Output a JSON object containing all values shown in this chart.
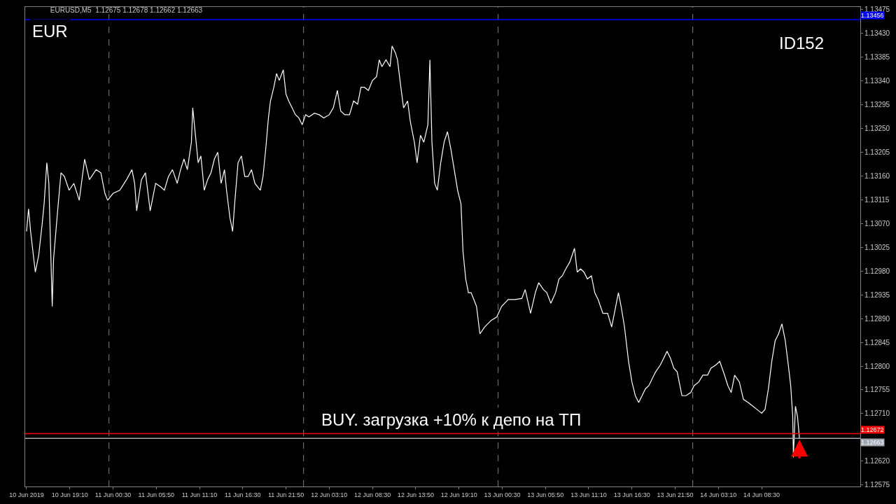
{
  "chart_data": {
    "type": "line",
    "title": "EURUSD,M5  1.12675 1.12678 1.12662 1.12663",
    "annotations": [
      "EUR",
      "ID152",
      "BUY. загрузка +10% к депо на ТП"
    ],
    "xlim": [
      "2019-06-10T13:40",
      "2019-06-14T20:40"
    ],
    "xticks": [
      {
        "value": "2019-06-10T13:50",
        "label": "10 Jun 2019"
      },
      {
        "value": "2019-06-10T19:10",
        "label": "10 Jun 19:10"
      },
      {
        "value": "2019-06-11T00:30",
        "label": "11 Jun 00:30"
      },
      {
        "value": "2019-06-11T05:50",
        "label": "11 Jun 05:50"
      },
      {
        "value": "2019-06-11T11:10",
        "label": "11 Jun 11:10"
      },
      {
        "value": "2019-06-11T16:30",
        "label": "11 Jun 16:30"
      },
      {
        "value": "2019-06-11T21:50",
        "label": "11 Jun 21:50"
      },
      {
        "value": "2019-06-12T03:10",
        "label": "12 Jun 03:10"
      },
      {
        "value": "2019-06-12T08:30",
        "label": "12 Jun 08:30"
      },
      {
        "value": "2019-06-12T13:50",
        "label": "12 Jun 13:50"
      },
      {
        "value": "2019-06-12T19:10",
        "label": "12 Jun 19:10"
      },
      {
        "value": "2019-06-13T00:30",
        "label": "13 Jun 00:30"
      },
      {
        "value": "2019-06-13T05:50",
        "label": "13 Jun 05:50"
      },
      {
        "value": "2019-06-13T11:10",
        "label": "13 Jun 11:10"
      },
      {
        "value": "2019-06-13T16:30",
        "label": "13 Jun 16:30"
      },
      {
        "value": "2019-06-13T21:50",
        "label": "13 Jun 21:50"
      },
      {
        "value": "2019-06-14T03:10",
        "label": "14 Jun 03:10"
      },
      {
        "value": "2019-06-14T08:30",
        "label": "14 Jun 08:30"
      }
    ],
    "ylim": [
      1.12572,
      1.1348
    ],
    "yticks": [
      1.13475,
      {
        "value": 1.1343,
        "label": "1.13430"
      },
      1.13385,
      {
        "value": 1.1334,
        "label": "1.13340"
      },
      1.13295,
      {
        "value": 1.1325,
        "label": "1.13250"
      },
      1.13205,
      {
        "value": 1.1316,
        "label": "1.13160"
      },
      1.13115,
      {
        "value": 1.1307,
        "label": "1.13070"
      },
      1.13025,
      {
        "value": 1.1298,
        "label": "1.12980"
      },
      1.12935,
      {
        "value": 1.1289,
        "label": "1.12890"
      },
      1.12845,
      {
        "value": 1.128,
        "label": "1.12800"
      },
      1.12755,
      {
        "value": 1.1271,
        "label": "1.12710"
      },
      {
        "value": 1.1262,
        "label": "1.12620"
      },
      1.12575
    ],
    "marker": "none",
    "line_style": "solid",
    "ref_lines": [
      {
        "axis": "y",
        "value": 1.12672,
        "label": "1.12672",
        "color": "#ff0000",
        "line_style": "solid"
      },
      {
        "axis": "y",
        "value": 1.12663,
        "label": "1.12663",
        "color": "#a0a8b0",
        "line_style": "solid"
      },
      {
        "axis": "y",
        "value": 1.13456,
        "label": "1.13456",
        "color": "#0000ff",
        "line_style": "solid"
      },
      {
        "axis": "x",
        "value": "2019-06-11T00:00",
        "color": "#808080",
        "line_style": "dashed"
      },
      {
        "axis": "x",
        "value": "2019-06-12T00:00",
        "color": "#808080",
        "line_style": "dashed"
      },
      {
        "axis": "x",
        "value": "2019-06-13T00:00",
        "color": "#808080",
        "line_style": "dashed"
      },
      {
        "axis": "x",
        "value": "2019-06-14T00:00",
        "color": "#808080",
        "line_style": "dashed"
      }
    ],
    "series": [
      {
        "color": "#ffffff",
        "x": [
          "2019-06-10T13:50",
          "2019-06-10T14:05",
          "2019-06-10T14:20",
          "2019-06-10T14:55",
          "2019-06-10T15:20",
          "2019-06-10T15:45",
          "2019-06-10T16:00",
          "2019-06-10T16:20",
          "2019-06-10T16:35",
          "2019-06-10T17:00",
          "2019-06-10T17:10",
          "2019-06-10T17:40",
          "2019-06-10T18:05",
          "2019-06-10T18:30",
          "2019-06-10T19:05",
          "2019-06-10T19:40",
          "2019-06-10T20:20",
          "2019-06-10T21:00",
          "2019-06-10T21:35",
          "2019-06-10T22:25",
          "2019-06-10T23:00",
          "2019-06-10T23:30",
          "2019-06-10T23:50",
          "2019-06-11T00:30",
          "2019-06-11T01:20",
          "2019-06-11T02:10",
          "2019-06-11T02:50",
          "2019-06-11T03:10",
          "2019-06-11T03:25",
          "2019-06-11T04:00",
          "2019-06-11T04:30",
          "2019-06-11T05:05",
          "2019-06-11T05:45",
          "2019-06-11T06:20",
          "2019-06-11T06:50",
          "2019-06-11T07:20",
          "2019-06-11T07:50",
          "2019-06-11T08:25",
          "2019-06-11T08:50",
          "2019-06-11T09:15",
          "2019-06-11T09:40",
          "2019-06-11T10:10",
          "2019-06-11T10:20",
          "2019-06-11T10:40",
          "2019-06-11T11:00",
          "2019-06-11T11:20",
          "2019-06-11T11:45",
          "2019-06-11T12:10",
          "2019-06-11T12:35",
          "2019-06-11T13:00",
          "2019-06-11T13:25",
          "2019-06-11T13:50",
          "2019-06-11T14:15",
          "2019-06-11T14:30",
          "2019-06-11T14:55",
          "2019-06-11T15:15",
          "2019-06-11T15:30",
          "2019-06-11T15:55",
          "2019-06-11T16:20",
          "2019-06-11T16:45",
          "2019-06-11T17:10",
          "2019-06-11T17:35",
          "2019-06-11T18:00",
          "2019-06-11T18:40",
          "2019-06-11T19:00",
          "2019-06-11T19:20",
          "2019-06-11T19:40",
          "2019-06-11T19:55",
          "2019-06-11T20:20",
          "2019-06-11T20:40",
          "2019-06-11T21:00",
          "2019-06-11T21:30",
          "2019-06-11T21:50",
          "2019-06-11T22:10",
          "2019-06-11T22:35",
          "2019-06-11T23:00",
          "2019-06-11T23:25",
          "2019-06-11T23:50",
          "2019-06-12T00:15",
          "2019-06-12T00:40",
          "2019-06-12T01:20",
          "2019-06-12T01:55",
          "2019-06-12T02:30",
          "2019-06-12T03:10",
          "2019-06-12T03:40",
          "2019-06-12T04:10",
          "2019-06-12T04:35",
          "2019-06-12T05:05",
          "2019-06-12T05:40",
          "2019-06-12T06:10",
          "2019-06-12T06:40",
          "2019-06-12T07:05",
          "2019-06-12T07:30",
          "2019-06-12T08:00",
          "2019-06-12T08:30",
          "2019-06-12T09:00",
          "2019-06-12T09:20",
          "2019-06-12T09:40",
          "2019-06-12T10:10",
          "2019-06-12T10:40",
          "2019-06-12T10:55",
          "2019-06-12T11:20",
          "2019-06-12T11:35",
          "2019-06-12T12:00",
          "2019-06-12T12:20",
          "2019-06-12T12:50",
          "2019-06-12T13:10",
          "2019-06-12T13:40",
          "2019-06-12T14:00",
          "2019-06-12T14:25",
          "2019-06-12T14:50",
          "2019-06-12T15:20",
          "2019-06-12T15:35",
          "2019-06-12T15:50",
          "2019-06-12T16:10",
          "2019-06-12T16:30",
          "2019-06-12T16:55",
          "2019-06-12T17:20",
          "2019-06-12T17:45",
          "2019-06-12T18:10",
          "2019-06-12T18:35",
          "2019-06-12T19:00",
          "2019-06-12T19:25",
          "2019-06-12T19:40",
          "2019-06-12T20:00",
          "2019-06-12T20:20",
          "2019-06-12T20:40",
          "2019-06-12T21:20",
          "2019-06-12T21:45",
          "2019-06-12T22:20",
          "2019-06-12T23:10",
          "2019-06-12T23:50",
          "2019-06-13T00:25",
          "2019-06-13T01:15",
          "2019-06-13T02:05",
          "2019-06-13T02:55",
          "2019-06-13T03:20",
          "2019-06-13T04:00",
          "2019-06-13T04:35",
          "2019-06-13T05:00",
          "2019-06-13T05:35",
          "2019-06-13T06:00",
          "2019-06-13T06:30",
          "2019-06-13T07:05",
          "2019-06-13T07:30",
          "2019-06-13T07:55",
          "2019-06-13T08:20",
          "2019-06-13T08:50",
          "2019-06-13T09:25",
          "2019-06-13T09:45",
          "2019-06-13T10:10",
          "2019-06-13T10:35",
          "2019-06-13T11:00",
          "2019-06-13T11:30",
          "2019-06-13T11:55",
          "2019-06-13T12:20",
          "2019-06-13T12:55",
          "2019-06-13T13:30",
          "2019-06-13T14:00",
          "2019-06-13T14:20",
          "2019-06-13T14:50",
          "2019-06-13T15:10",
          "2019-06-13T15:35",
          "2019-06-13T16:05",
          "2019-06-13T16:30",
          "2019-06-13T16:55",
          "2019-06-13T17:20",
          "2019-06-13T17:45",
          "2019-06-13T18:10",
          "2019-06-13T18:35",
          "2019-06-13T19:00",
          "2019-06-13T19:25",
          "2019-06-13T20:00",
          "2019-06-13T20:25",
          "2019-06-13T20:50",
          "2019-06-13T21:15",
          "2019-06-13T21:40",
          "2019-06-13T22:05",
          "2019-06-13T22:40",
          "2019-06-13T23:10",
          "2019-06-13T23:45",
          "2019-06-14T00:10",
          "2019-06-14T00:45",
          "2019-06-14T01:15",
          "2019-06-14T01:50",
          "2019-06-14T02:15",
          "2019-06-14T02:50",
          "2019-06-14T03:20",
          "2019-06-14T03:55",
          "2019-06-14T04:20",
          "2019-06-14T04:45",
          "2019-06-14T05:10",
          "2019-06-14T05:45",
          "2019-06-14T06:15",
          "2019-06-14T06:50",
          "2019-06-14T07:25",
          "2019-06-14T07:55",
          "2019-06-14T08:30",
          "2019-06-14T08:55",
          "2019-06-14T09:20",
          "2019-06-14T09:45",
          "2019-06-14T10:10",
          "2019-06-14T10:35",
          "2019-06-14T11:00",
          "2019-06-14T11:25",
          "2019-06-14T11:50",
          "2019-06-14T12:05",
          "2019-06-14T12:20",
          "2019-06-14T12:25",
          "2019-06-14T12:40",
          "2019-06-14T12:55",
          "2019-06-14T13:10"
        ],
        "values": [
          1.13055,
          1.13098,
          1.13055,
          1.12978,
          1.1301,
          1.13068,
          1.13107,
          1.13185,
          1.13146,
          1.12913,
          1.13003,
          1.13094,
          1.13166,
          1.13159,
          1.13133,
          1.13146,
          1.13114,
          1.13192,
          1.13153,
          1.13172,
          1.13166,
          1.13127,
          1.13114,
          1.13127,
          1.13133,
          1.13153,
          1.13172,
          1.13146,
          1.13094,
          1.13153,
          1.13166,
          1.13094,
          1.13146,
          1.1314,
          1.13133,
          1.13159,
          1.13172,
          1.13146,
          1.13172,
          1.13192,
          1.13172,
          1.13224,
          1.13289,
          1.13237,
          1.13185,
          1.13198,
          1.13133,
          1.13153,
          1.13166,
          1.13192,
          1.13205,
          1.13146,
          1.13172,
          1.13133,
          1.13081,
          1.13055,
          1.13107,
          1.13185,
          1.13198,
          1.13159,
          1.13159,
          1.13172,
          1.13146,
          1.13133,
          1.13159,
          1.13211,
          1.1327,
          1.13302,
          1.13328,
          1.13354,
          1.13341,
          1.13361,
          1.13315,
          1.13302,
          1.13289,
          1.13276,
          1.1327,
          1.13257,
          1.13276,
          1.13272,
          1.13279,
          1.13276,
          1.1327,
          1.13276,
          1.13289,
          1.13322,
          1.13283,
          1.13276,
          1.13276,
          1.13302,
          1.13296,
          1.13328,
          1.13328,
          1.13322,
          1.13341,
          1.13348,
          1.1338,
          1.13367,
          1.1338,
          1.13367,
          1.13406,
          1.13393,
          1.1338,
          1.13328,
          1.13289,
          1.13302,
          1.13263,
          1.13224,
          1.13185,
          1.13237,
          1.13224,
          1.13257,
          1.1338,
          1.13224,
          1.13146,
          1.13133,
          1.13185,
          1.13224,
          1.13244,
          1.13211,
          1.13172,
          1.13133,
          1.13107,
          1.13017,
          1.12965,
          1.12939,
          1.12939,
          1.12913,
          1.12861,
          1.12874,
          1.12887,
          1.12893,
          1.12913,
          1.12926,
          1.12926,
          1.12928,
          1.12945,
          1.129,
          1.12939,
          1.12958,
          1.12945,
          1.12939,
          1.12919,
          1.12939,
          1.12965,
          1.12971,
          1.12984,
          1.12997,
          1.13023,
          1.12978,
          1.12984,
          1.12978,
          1.12965,
          1.12971,
          1.12939,
          1.12926,
          1.129,
          1.129,
          1.12874,
          1.129,
          1.12939,
          1.12913,
          1.12874,
          1.12809,
          1.1277,
          1.12744,
          1.12731,
          1.12744,
          1.12757,
          1.12763,
          1.12776,
          1.12789,
          1.12802,
          1.12815,
          1.12828,
          1.12815,
          1.12796,
          1.12789,
          1.12744,
          1.12744,
          1.1275,
          1.12763,
          1.1277,
          1.12783,
          1.12783,
          1.12796,
          1.12802,
          1.12809,
          1.12783,
          1.12763,
          1.1275,
          1.12783,
          1.1277,
          1.12737,
          1.12731,
          1.12724,
          1.12718,
          1.12711,
          1.12718,
          1.12757,
          1.12809,
          1.12848,
          1.12861,
          1.1288,
          1.12848,
          1.12796,
          1.12763,
          1.12705,
          1.12627,
          1.12724,
          1.12705,
          1.12663
        ]
      }
    ]
  }
}
